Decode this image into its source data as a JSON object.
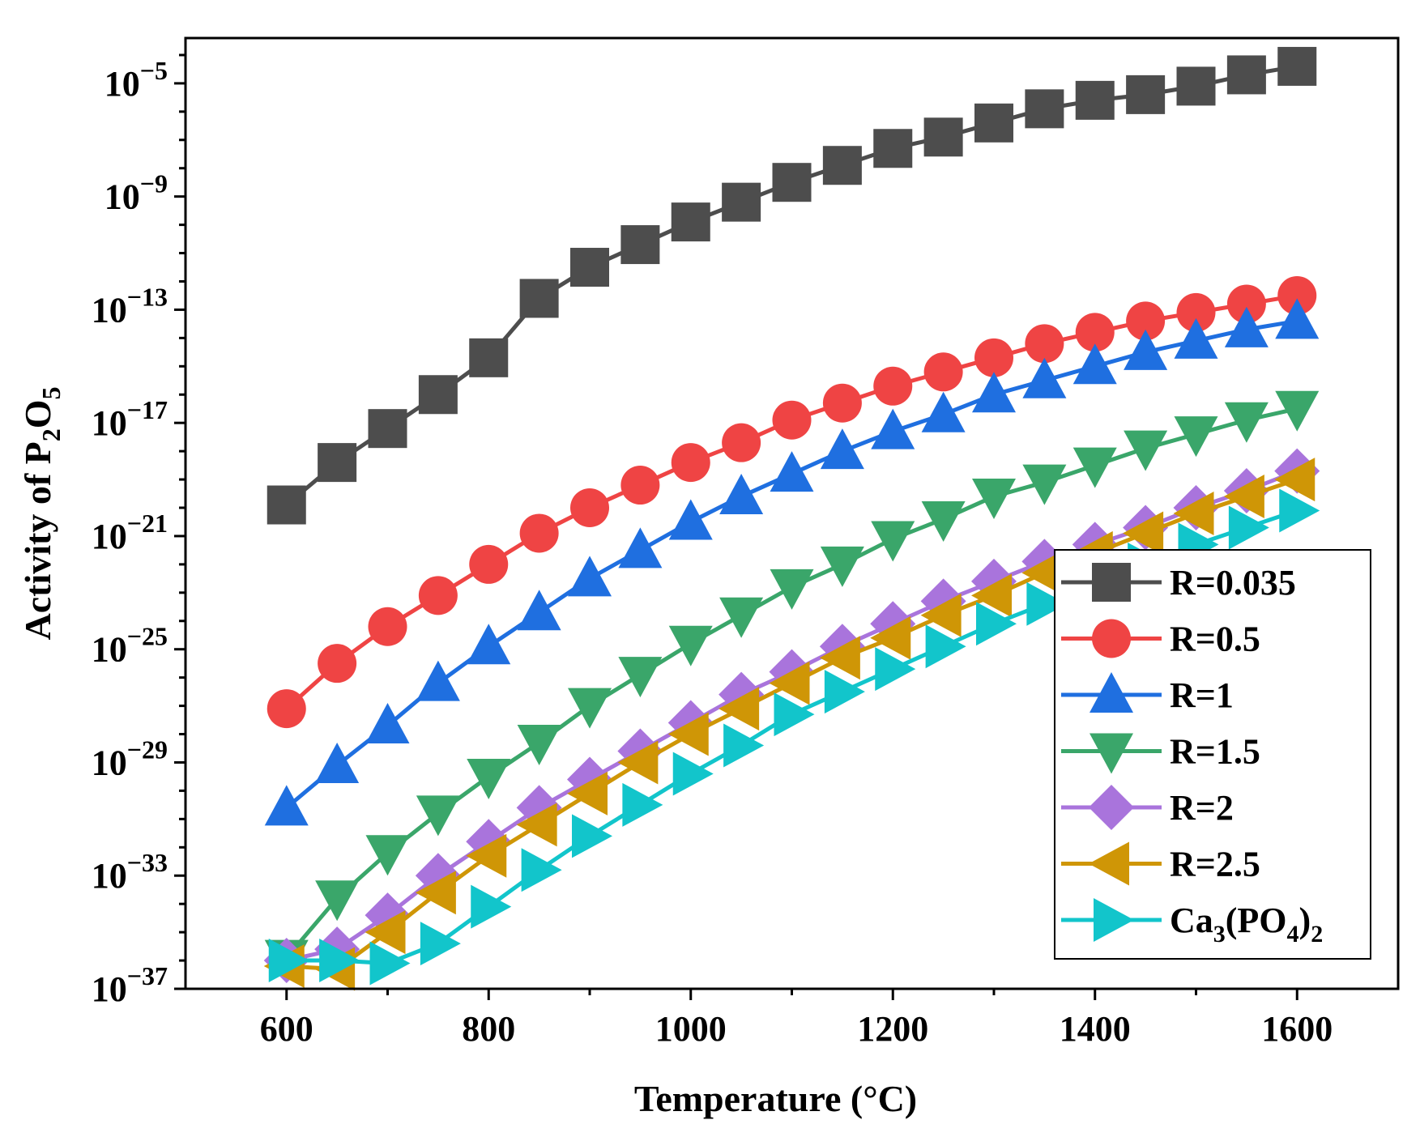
{
  "chart_data": {
    "type": "line",
    "xlabel": "Temperature (°C)",
    "ylabel": "Activity of P2O5",
    "ylabel_parts": {
      "pre": "Activity of P",
      "sub1": "2",
      "mid": "O",
      "sub2": "5"
    },
    "xlim": [
      500,
      1700
    ],
    "ylim_exponent": [
      -37,
      -3.4
    ],
    "yscale": "log",
    "x_ticks": [
      600,
      800,
      1000,
      1200,
      1400,
      1600
    ],
    "y_tick_exponents": [
      -37,
      -33,
      -29,
      -25,
      -21,
      -17,
      -13,
      -9,
      -5
    ],
    "y_tick_base": "10",
    "grid": false,
    "legend_position": "bottom-right",
    "x": [
      600,
      650,
      700,
      750,
      800,
      850,
      900,
      950,
      1000,
      1050,
      1100,
      1150,
      1200,
      1250,
      1300,
      1350,
      1400,
      1450,
      1500,
      1550,
      1600
    ],
    "series": [
      {
        "name": "R=0.035",
        "color": "#4d4d4d",
        "marker": "square",
        "log10_values": [
          -19.9,
          -18.4,
          -17.2,
          -16.0,
          -14.7,
          -12.6,
          -11.5,
          -10.7,
          -9.9,
          -9.2,
          -8.5,
          -7.9,
          -7.3,
          -6.9,
          -6.4,
          -5.9,
          -5.6,
          -5.4,
          -5.1,
          -4.7,
          -4.4
        ]
      },
      {
        "name": "R=0.5",
        "color": "#ef4444",
        "marker": "circle",
        "log10_values": [
          -27.1,
          -25.5,
          -24.2,
          -23.1,
          -22.0,
          -20.9,
          -20.0,
          -19.2,
          -18.4,
          -17.7,
          -16.9,
          -16.3,
          -15.7,
          -15.2,
          -14.7,
          -14.2,
          -13.8,
          -13.4,
          -13.1,
          -12.8,
          -12.5
        ]
      },
      {
        "name": "R=1",
        "color": "#1f6fe0",
        "marker": "triangle-up",
        "log10_values": [
          -30.6,
          -29.1,
          -27.7,
          -26.2,
          -24.9,
          -23.7,
          -22.5,
          -21.5,
          -20.5,
          -19.6,
          -18.8,
          -18.0,
          -17.3,
          -16.7,
          -16.0,
          -15.5,
          -15.0,
          -14.5,
          -14.1,
          -13.7,
          -13.4
        ]
      },
      {
        "name": "R=1.5",
        "color": "#3aa66a",
        "marker": "triangle-down",
        "log10_values": [
          -35.9,
          -33.8,
          -32.2,
          -30.8,
          -29.5,
          -28.3,
          -27.0,
          -25.9,
          -24.8,
          -23.8,
          -22.8,
          -22.0,
          -21.1,
          -20.4,
          -19.6,
          -19.1,
          -18.5,
          -17.9,
          -17.4,
          -16.9,
          -16.5
        ]
      },
      {
        "name": "R=2",
        "color": "#a974dc",
        "marker": "diamond",
        "log10_values": [
          -36.0,
          -35.6,
          -34.4,
          -33.0,
          -31.8,
          -30.6,
          -29.6,
          -28.6,
          -27.6,
          -26.6,
          -25.8,
          -24.9,
          -24.1,
          -23.3,
          -22.6,
          -21.9,
          -21.3,
          -20.7,
          -20.0,
          -19.4,
          -18.7
        ]
      },
      {
        "name": "R=2.5",
        "color": "#cf9606",
        "marker": "triangle-left",
        "log10_values": [
          -36.2,
          -36.3,
          -35.0,
          -33.6,
          -32.3,
          -31.2,
          -30.1,
          -29.0,
          -28.0,
          -27.1,
          -26.2,
          -25.3,
          -24.6,
          -23.8,
          -23.1,
          -22.3,
          -21.6,
          -20.9,
          -20.2,
          -19.6,
          -19.0
        ]
      },
      {
        "name": "Ca3(PO4)2",
        "color": "#12c5cb",
        "marker": "triangle-right",
        "log10_values": [
          -36.0,
          -36.0,
          -36.1,
          -35.4,
          -34.1,
          -32.8,
          -31.6,
          -30.5,
          -29.4,
          -28.4,
          -27.3,
          -26.5,
          -25.7,
          -24.9,
          -24.1,
          -23.4,
          -22.6,
          -22.0,
          -21.3,
          -20.7,
          -20.1
        ]
      }
    ],
    "legend_labels": [
      {
        "text": "R=0.035"
      },
      {
        "text": "R=0.5"
      },
      {
        "text": "R=1"
      },
      {
        "text": "R=1.5"
      },
      {
        "text": "R=2"
      },
      {
        "text": "R=2.5"
      },
      {
        "text": "Ca",
        "parts": [
          "Ca",
          "3",
          "(PO",
          "4",
          ")",
          "2"
        ]
      }
    ]
  }
}
